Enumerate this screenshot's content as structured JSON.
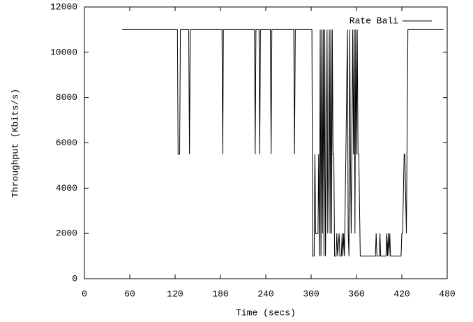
{
  "chart_data": {
    "type": "line",
    "xlabel": "Time (secs)",
    "ylabel": "Throughput (Kbits/s)",
    "xlim": [
      0,
      480
    ],
    "xticks": [
      0,
      60,
      120,
      180,
      240,
      300,
      360,
      420,
      480
    ],
    "ylim": [
      0,
      12000
    ],
    "yticks": [
      0,
      2000,
      4000,
      6000,
      8000,
      10000,
      12000
    ],
    "legend": "top-right",
    "x": [
      50,
      123,
      124,
      126,
      127,
      138,
      139,
      140,
      182,
      183,
      184,
      225,
      226,
      227,
      231,
      232,
      233,
      246,
      247,
      248,
      277,
      278,
      279,
      301,
      302,
      304,
      305,
      306,
      309,
      310,
      311,
      312,
      313,
      314,
      315,
      316,
      317,
      318,
      319,
      320,
      321,
      322,
      323,
      324,
      325,
      326,
      327,
      328,
      329,
      330,
      331,
      333,
      334,
      335,
      337,
      338,
      340,
      341,
      342,
      343,
      344,
      346,
      348,
      349,
      350,
      351,
      352,
      353,
      355,
      356,
      357,
      358,
      359,
      360,
      361,
      362,
      363,
      365,
      385,
      386,
      387,
      390,
      391,
      392,
      399,
      400,
      401,
      402,
      403,
      404,
      405,
      406,
      419,
      420,
      421,
      423,
      424,
      426,
      428,
      475
    ],
    "series": [
      {
        "name": "Rate Bali",
        "color": "#000000",
        "values": [
          11000,
          11000,
          5500,
          5500,
          11000,
          11000,
          5500,
          11000,
          11000,
          5500,
          11000,
          11000,
          5500,
          11000,
          11000,
          5500,
          11000,
          11000,
          5500,
          11000,
          11000,
          5500,
          11000,
          11000,
          1000,
          1000,
          5500,
          2000,
          2000,
          5500,
          1000,
          11000,
          1000,
          11000,
          2000,
          11000,
          1000,
          11000,
          1000,
          5500,
          11000,
          2000,
          5500,
          11000,
          2000,
          11000,
          2000,
          11000,
          5500,
          5500,
          1000,
          1000,
          2000,
          1000,
          2000,
          1000,
          1000,
          2000,
          1000,
          2000,
          1000,
          5500,
          11000,
          2000,
          1000,
          11000,
          5500,
          2000,
          11000,
          5500,
          11000,
          2000,
          11000,
          5500,
          11000,
          5500,
          5500,
          1000,
          1000,
          2000,
          1000,
          1000,
          2000,
          1000,
          1000,
          2000,
          1000,
          2000,
          1000,
          2000,
          1000,
          1000,
          1000,
          2000,
          2000,
          5500,
          5500,
          2000,
          11000,
          11000
        ]
      }
    ]
  }
}
